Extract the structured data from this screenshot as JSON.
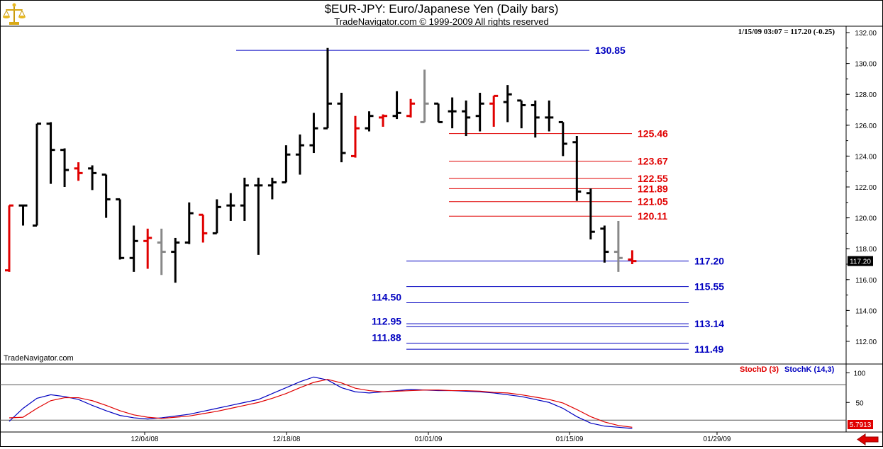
{
  "header": {
    "title": "$EUR-JPY:  Euro/Japanese Yen  (Daily bars)",
    "subtitle": "TradeNavigator.com © 1999-2009 All rights reserved",
    "quote": "1/15/09 03:07 = 117.20 (-0.25)",
    "brand": "TradeNavigator.com"
  },
  "colors": {
    "up_bar": "#000000",
    "down_bar": "#e00000",
    "neutral_bar": "#888888",
    "support": "#0000c0",
    "resistance": "#e00000",
    "stoch_k": "#0000c0",
    "stoch_d": "#e00000"
  },
  "icons": {
    "logo": "gold-scale-icon",
    "scroll": "left-arrow-icon"
  },
  "chart_data": [
    {
      "type": "ohlc",
      "y_axis": {
        "ticks": [
          "132.00",
          "130.00",
          "128.00",
          "126.00",
          "124.00",
          "122.00",
          "120.00",
          "118.00",
          "116.00",
          "114.00",
          "112.00"
        ],
        "ylim": [
          111.0,
          132.0
        ],
        "current_label": "117.20"
      },
      "x_axis": {
        "ticks": [
          "12/04/08",
          "12/18/08",
          "01/01/09",
          "01/15/09",
          "01/29/09"
        ],
        "grid": false
      },
      "bars": [
        {
          "o": 116.6,
          "h": 120.8,
          "l": 116.5,
          "c": 120.8,
          "color": "red"
        },
        {
          "o": 120.8,
          "h": 120.8,
          "l": 119.5,
          "c": 120.8,
          "color": "black"
        },
        {
          "o": 119.5,
          "h": 126.1,
          "l": 119.5,
          "c": 126.1,
          "color": "black"
        },
        {
          "o": 126.1,
          "h": 126.2,
          "l": 122.2,
          "c": 124.4,
          "color": "black"
        },
        {
          "o": 124.4,
          "h": 124.5,
          "l": 122.0,
          "c": 123.1,
          "color": "black"
        },
        {
          "o": 123.2,
          "h": 123.6,
          "l": 122.4,
          "c": 122.9,
          "color": "red"
        },
        {
          "o": 123.2,
          "h": 123.4,
          "l": 121.8,
          "c": 122.9,
          "color": "black"
        },
        {
          "o": 122.8,
          "h": 122.8,
          "l": 120.0,
          "c": 121.2,
          "color": "black"
        },
        {
          "o": 121.2,
          "h": 121.2,
          "l": 117.3,
          "c": 117.4,
          "color": "black"
        },
        {
          "o": 117.4,
          "h": 119.5,
          "l": 116.5,
          "c": 118.5,
          "color": "black"
        },
        {
          "o": 118.5,
          "h": 119.3,
          "l": 116.7,
          "c": 118.7,
          "color": "red"
        },
        {
          "o": 118.4,
          "h": 119.3,
          "l": 116.3,
          "c": 117.8,
          "color": "gray"
        },
        {
          "o": 117.8,
          "h": 118.7,
          "l": 115.8,
          "c": 118.4,
          "color": "black"
        },
        {
          "o": 118.4,
          "h": 121.0,
          "l": 118.3,
          "c": 120.3,
          "color": "black"
        },
        {
          "o": 120.2,
          "h": 120.2,
          "l": 118.4,
          "c": 119.0,
          "color": "red"
        },
        {
          "o": 119.0,
          "h": 121.2,
          "l": 119.0,
          "c": 120.7,
          "color": "black"
        },
        {
          "o": 120.8,
          "h": 121.6,
          "l": 119.8,
          "c": 120.8,
          "color": "black"
        },
        {
          "o": 120.8,
          "h": 122.6,
          "l": 119.8,
          "c": 122.1,
          "color": "black"
        },
        {
          "o": 122.1,
          "h": 122.6,
          "l": 117.6,
          "c": 122.1,
          "color": "black"
        },
        {
          "o": 122.1,
          "h": 122.6,
          "l": 121.2,
          "c": 122.3,
          "color": "black"
        },
        {
          "o": 122.3,
          "h": 124.7,
          "l": 122.3,
          "c": 124.1,
          "color": "black"
        },
        {
          "o": 124.1,
          "h": 125.4,
          "l": 122.8,
          "c": 124.7,
          "color": "black"
        },
        {
          "o": 124.7,
          "h": 126.8,
          "l": 124.2,
          "c": 125.8,
          "color": "black"
        },
        {
          "o": 125.8,
          "h": 131.0,
          "l": 125.8,
          "c": 127.4,
          "color": "black"
        },
        {
          "o": 127.4,
          "h": 128.1,
          "l": 123.6,
          "c": 124.2,
          "color": "black"
        },
        {
          "o": 124.0,
          "h": 126.6,
          "l": 123.9,
          "c": 125.8,
          "color": "red"
        },
        {
          "o": 125.8,
          "h": 126.9,
          "l": 125.6,
          "c": 126.6,
          "color": "black"
        },
        {
          "o": 126.5,
          "h": 126.7,
          "l": 125.9,
          "c": 126.6,
          "color": "red"
        },
        {
          "o": 126.6,
          "h": 128.2,
          "l": 126.4,
          "c": 126.8,
          "color": "black"
        },
        {
          "o": 126.6,
          "h": 127.7,
          "l": 126.5,
          "c": 127.4,
          "color": "red"
        },
        {
          "o": 126.2,
          "h": 129.6,
          "l": 126.2,
          "c": 127.4,
          "color": "gray"
        },
        {
          "o": 127.4,
          "h": 127.4,
          "l": 126.2,
          "c": 126.2,
          "color": "black"
        },
        {
          "o": 126.9,
          "h": 127.8,
          "l": 125.8,
          "c": 126.9,
          "color": "black"
        },
        {
          "o": 126.9,
          "h": 127.6,
          "l": 125.3,
          "c": 126.5,
          "color": "black"
        },
        {
          "o": 126.6,
          "h": 128.1,
          "l": 125.6,
          "c": 127.4,
          "color": "black"
        },
        {
          "o": 127.4,
          "h": 127.9,
          "l": 125.9,
          "c": 127.9,
          "color": "red"
        },
        {
          "o": 127.5,
          "h": 128.6,
          "l": 126.2,
          "c": 128.0,
          "color": "black"
        },
        {
          "o": 127.6,
          "h": 127.6,
          "l": 125.8,
          "c": 127.3,
          "color": "black"
        },
        {
          "o": 127.3,
          "h": 127.6,
          "l": 125.2,
          "c": 126.5,
          "color": "black"
        },
        {
          "o": 126.5,
          "h": 127.6,
          "l": 125.6,
          "c": 126.5,
          "color": "black"
        },
        {
          "o": 126.2,
          "h": 126.2,
          "l": 124.0,
          "c": 124.8,
          "color": "black"
        },
        {
          "o": 124.9,
          "h": 125.3,
          "l": 121.1,
          "c": 121.7,
          "color": "black"
        },
        {
          "o": 121.6,
          "h": 121.9,
          "l": 118.6,
          "c": 119.1,
          "color": "black"
        },
        {
          "o": 119.3,
          "h": 119.5,
          "l": 117.1,
          "c": 117.8,
          "color": "black"
        },
        {
          "o": 117.8,
          "h": 119.8,
          "l": 116.5,
          "c": 117.4,
          "color": "gray"
        },
        {
          "o": 117.3,
          "h": 117.9,
          "l": 117.0,
          "c": 117.2,
          "color": "red"
        }
      ]
    },
    {
      "type": "levels",
      "levels": [
        {
          "value": 130.85,
          "label": "130.85",
          "color": "blue",
          "label_side": "right"
        },
        {
          "value": 125.46,
          "label": "125.46",
          "color": "red",
          "label_side": "right"
        },
        {
          "value": 123.67,
          "label": "123.67",
          "color": "red",
          "label_side": "right"
        },
        {
          "value": 122.55,
          "label": "122.55",
          "color": "red",
          "label_side": "right"
        },
        {
          "value": 121.89,
          "label": "121.89",
          "color": "red",
          "label_side": "right"
        },
        {
          "value": 121.05,
          "label": "121.05",
          "color": "red",
          "label_side": "right"
        },
        {
          "value": 120.11,
          "label": "120.11",
          "color": "red",
          "label_side": "right"
        },
        {
          "value": 117.2,
          "label": "117.20",
          "color": "blue",
          "label_side": "right"
        },
        {
          "value": 115.55,
          "label": "115.55",
          "color": "blue",
          "label_side": "right"
        },
        {
          "value": 114.5,
          "label": "114.50",
          "color": "blue",
          "label_side": "left"
        },
        {
          "value": 113.14,
          "label": "113.14",
          "color": "blue",
          "label_side": "right"
        },
        {
          "value": 112.95,
          "label": "112.95",
          "color": "blue",
          "label_side": "left"
        },
        {
          "value": 111.88,
          "label": "111.88",
          "color": "blue",
          "label_side": "left"
        },
        {
          "value": 111.49,
          "label": "111.49",
          "color": "blue",
          "label_side": "right"
        }
      ]
    },
    {
      "type": "line",
      "legend": [
        "StochD (3)",
        "StochK (14,3)"
      ],
      "y_axis": {
        "ticks": [
          "100",
          "50"
        ],
        "ylim": [
          0,
          115
        ],
        "current_label": "5.7913",
        "reference_lines": [
          80,
          20
        ]
      },
      "series": [
        {
          "name": "StochK (14,3)",
          "color": "blue",
          "values": [
            18,
            40,
            57,
            63,
            60,
            55,
            45,
            36,
            28,
            24,
            22,
            24,
            27,
            30,
            35,
            40,
            45,
            50,
            55,
            65,
            75,
            85,
            93,
            88,
            75,
            68,
            66,
            68,
            70,
            72,
            71,
            70,
            70,
            69,
            68,
            66,
            63,
            60,
            55,
            50,
            40,
            26,
            15,
            10,
            8,
            6
          ]
        },
        {
          "name": "StochD (3)",
          "color": "red",
          "values": [
            24,
            25,
            40,
            53,
            58,
            58,
            53,
            45,
            36,
            29,
            25,
            23,
            25,
            27,
            31,
            35,
            40,
            45,
            50,
            57,
            65,
            75,
            84,
            89,
            83,
            74,
            70,
            68,
            69,
            70,
            71,
            71,
            70,
            70,
            69,
            67,
            66,
            63,
            59,
            55,
            49,
            38,
            26,
            17,
            11,
            8
          ]
        }
      ]
    }
  ]
}
